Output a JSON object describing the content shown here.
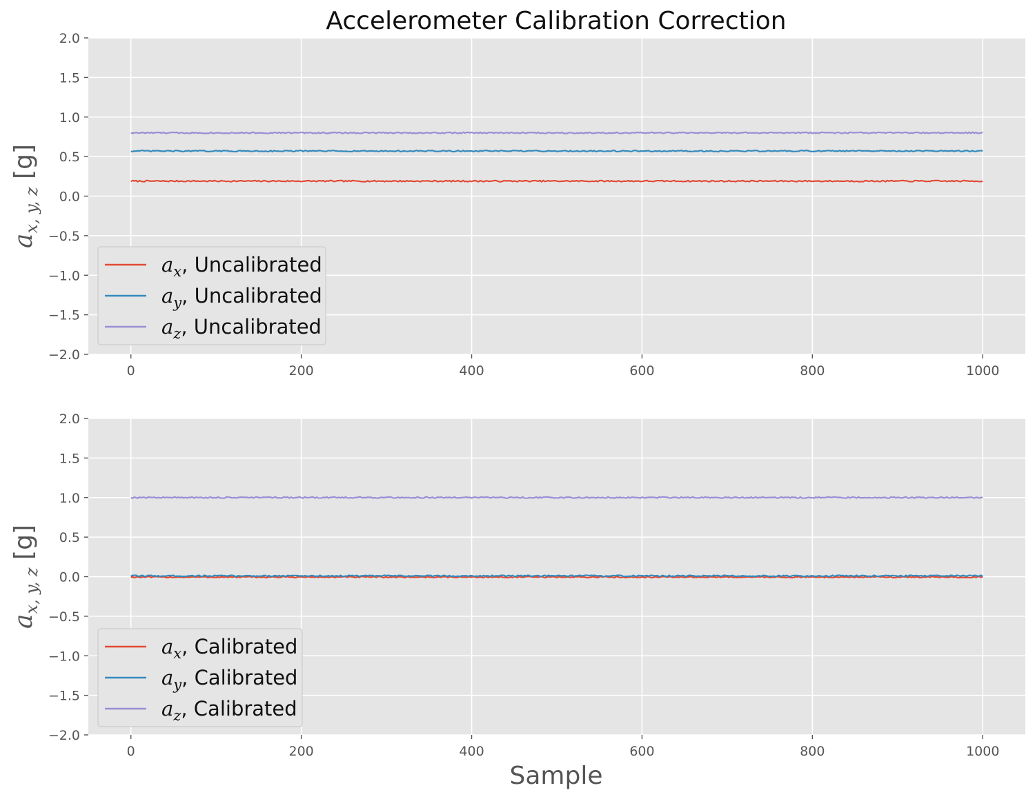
{
  "figure": {
    "title": "Accelerometer Calibration Correction",
    "xlabel": "Sample"
  },
  "colors": {
    "ax": "#E24A33",
    "ay": "#348ABD",
    "az": "#988ED5",
    "plot_bg": "#E5E5E5",
    "grid": "#FFFFFF"
  },
  "chart_data": [
    {
      "type": "line",
      "title": "Accelerometer Calibration Correction",
      "xlabel": "",
      "ylabel": "a_{x,y,z} [g]",
      "ylabel_parts": {
        "var": "a",
        "sub": "x, y, z",
        "unit": "[g]"
      },
      "xlim": [
        -50,
        1050
      ],
      "ylim": [
        -2.0,
        2.0
      ],
      "xticks": [
        0,
        200,
        400,
        600,
        800,
        1000
      ],
      "yticks": [
        -2.0,
        -1.5,
        -1.0,
        -0.5,
        0.0,
        0.5,
        1.0,
        1.5,
        2.0
      ],
      "ytick_labels": [
        "−2.0",
        "−1.5",
        "−1.0",
        "−0.5",
        "0.0",
        "0.5",
        "1.0",
        "1.5",
        "2.0"
      ],
      "grid": true,
      "legend_position": "lower-left",
      "x_range": [
        0,
        1000
      ],
      "noise_amplitude": 0.008,
      "series": [
        {
          "name": "a_x, Uncalibrated",
          "var": "a",
          "sub": "x",
          "suffix": ", Uncalibrated",
          "color": "#E24A33",
          "value": 0.19
        },
        {
          "name": "a_y, Uncalibrated",
          "var": "a",
          "sub": "y",
          "suffix": ", Uncalibrated",
          "color": "#348ABD",
          "value": 0.57
        },
        {
          "name": "a_z, Uncalibrated",
          "var": "a",
          "sub": "z",
          "suffix": ", Uncalibrated",
          "color": "#988ED5",
          "value": 0.8
        }
      ]
    },
    {
      "type": "line",
      "title": "",
      "xlabel": "Sample",
      "ylabel": "a_{x,y,z} [g]",
      "ylabel_parts": {
        "var": "a",
        "sub": "x, y, z",
        "unit": "[g]"
      },
      "xlim": [
        -50,
        1050
      ],
      "ylim": [
        -2.0,
        2.0
      ],
      "xticks": [
        0,
        200,
        400,
        600,
        800,
        1000
      ],
      "yticks": [
        -2.0,
        -1.5,
        -1.0,
        -0.5,
        0.0,
        0.5,
        1.0,
        1.5,
        2.0
      ],
      "ytick_labels": [
        "−2.0",
        "−1.5",
        "−1.0",
        "−0.5",
        "0.0",
        "0.5",
        "1.0",
        "1.5",
        "2.0"
      ],
      "grid": true,
      "legend_position": "lower-left",
      "x_range": [
        0,
        1000
      ],
      "noise_amplitude": 0.008,
      "series": [
        {
          "name": "a_x, Calibrated",
          "var": "a",
          "sub": "x",
          "suffix": ", Calibrated",
          "color": "#E24A33",
          "value": -0.005
        },
        {
          "name": "a_y, Calibrated",
          "var": "a",
          "sub": "y",
          "suffix": ", Calibrated",
          "color": "#348ABD",
          "value": 0.01
        },
        {
          "name": "a_z, Calibrated",
          "var": "a",
          "sub": "z",
          "suffix": ", Calibrated",
          "color": "#988ED5",
          "value": 1.0
        }
      ]
    }
  ]
}
